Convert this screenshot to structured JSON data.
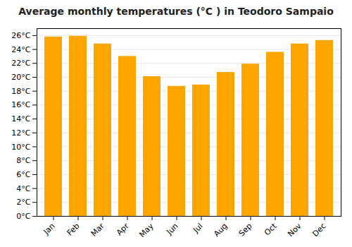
{
  "chart_data": {
    "type": "bar",
    "title": "Average monthly temperatures (°C ) in Teodoro Sampaio",
    "categories": [
      "Jan",
      "Feb",
      "Mar",
      "Apr",
      "May",
      "Jun",
      "Jul",
      "Aug",
      "Sep",
      "Oct",
      "Nov",
      "Dec"
    ],
    "values": [
      25.8,
      25.9,
      24.8,
      23.0,
      20.1,
      18.7,
      18.9,
      20.7,
      21.9,
      23.6,
      24.8,
      25.3
    ],
    "color": "#FFA500",
    "ylim": [
      0,
      27
    ],
    "yticks": [
      {
        "value": 0,
        "label": "0°C"
      },
      {
        "value": 2,
        "label": "2°C"
      },
      {
        "value": 4,
        "label": "4°C"
      },
      {
        "value": 6,
        "label": "6°C"
      },
      {
        "value": 8,
        "label": "8°C"
      },
      {
        "value": 10,
        "label": "10°C"
      },
      {
        "value": 12,
        "label": "12°C"
      },
      {
        "value": 14,
        "label": "14°C"
      },
      {
        "value": 16,
        "label": "16°C"
      },
      {
        "value": 18,
        "label": "18°C"
      },
      {
        "value": 20,
        "label": "20°C"
      },
      {
        "value": 22,
        "label": "22°C"
      },
      {
        "value": 24,
        "label": "24°C"
      },
      {
        "value": 26,
        "label": "26°C"
      }
    ],
    "grid": true
  }
}
